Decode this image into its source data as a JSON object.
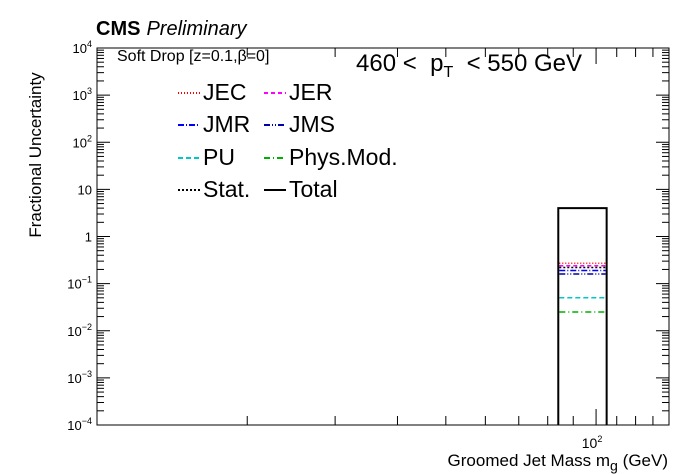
{
  "header": {
    "experiment": "CMS",
    "status": "Preliminary"
  },
  "annotations": {
    "algorithm": "Soft Drop [z=0.1,β=0]",
    "pt_range": {
      "low": "460 <",
      "symbol": "p",
      "subscript": "T",
      "high": "< 550 GeV"
    }
  },
  "chart_data": {
    "type": "line",
    "xlabel": "Groomed Jet Mass m",
    "xlabel_subscript": "g",
    "xlabel_unit": "(GeV)",
    "ylabel": "Fractional Uncertainty",
    "x_scale": "log",
    "y_scale": "log",
    "xlim": [
      10,
      140
    ],
    "ylim": [
      0.0001,
      10000
    ],
    "x_ticks": [
      {
        "value": 100,
        "label": "10",
        "exponent": "2"
      }
    ],
    "y_ticks": [
      {
        "value": 0.0001,
        "base": "10",
        "exponent": "−4"
      },
      {
        "value": 0.001,
        "base": "10",
        "exponent": "−3"
      },
      {
        "value": 0.01,
        "base": "10",
        "exponent": "−2"
      },
      {
        "value": 0.1,
        "base": "10",
        "exponent": "−1"
      },
      {
        "value": 1,
        "base": "1",
        "exponent": ""
      },
      {
        "value": 10,
        "base": "10",
        "exponent": ""
      },
      {
        "value": 100,
        "base": "10",
        "exponent": "2"
      },
      {
        "value": 1000,
        "base": "10",
        "exponent": "3"
      },
      {
        "value": 10000,
        "base": "10",
        "exponent": "4"
      }
    ],
    "bin": [
      84,
      105
    ],
    "series": [
      {
        "name": "JEC",
        "value": 0.27,
        "color": "#ff0000",
        "dash": "1,2"
      },
      {
        "name": "JER",
        "value": 0.24,
        "color": "#ff00ff",
        "dash": "4,3"
      },
      {
        "name": "JMR",
        "value": 0.19,
        "color": "#0000ff",
        "dash": "6,2,1,2"
      },
      {
        "name": "JMS",
        "value": 0.16,
        "color": "#0000aa",
        "dash": "6,2,1,2,1,2"
      },
      {
        "name": "PU",
        "value": 0.05,
        "color": "#00c8c8",
        "dash": "5,3"
      },
      {
        "name": "Phys.Mod.",
        "value": 0.025,
        "color": "#00b000",
        "dash": "6,3,1,3"
      },
      {
        "name": "Stat.",
        "value": 0.22,
        "color": "#000000",
        "dash": "2,2"
      },
      {
        "name": "Total",
        "value": 4.0,
        "color": "#000000",
        "dash": ""
      }
    ],
    "legend_position": "top-left",
    "grid": false
  }
}
